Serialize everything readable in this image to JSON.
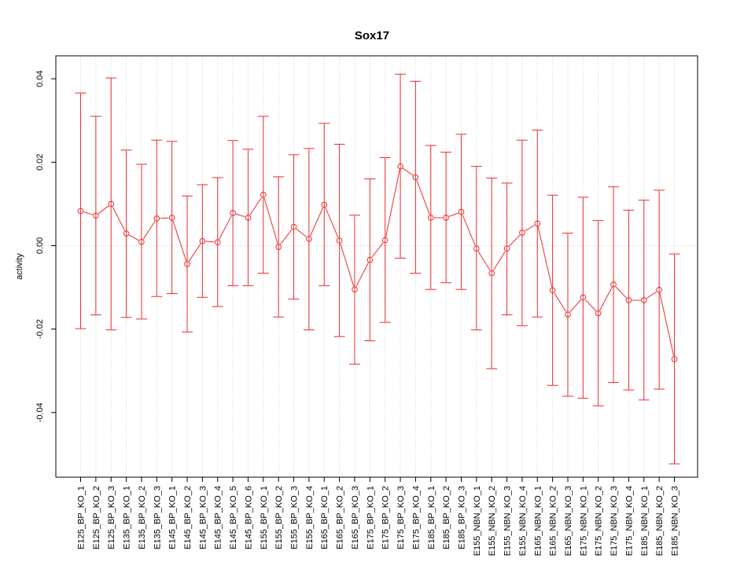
{
  "chart_data": {
    "type": "line",
    "title": "Sox17",
    "xlabel": "",
    "ylabel": "activity",
    "ylim": [
      -0.0555,
      0.0455
    ],
    "yticks": [
      -0.04,
      -0.02,
      0.0,
      0.02,
      0.04
    ],
    "ytick_labels": [
      "-0.04",
      "-0.02",
      "0.00",
      "0.02",
      "0.04"
    ],
    "grid": true,
    "reference_line": 0.0,
    "colors": {
      "series": "#ee2c2c",
      "grid": "#d3d3d3",
      "axis": "#000000"
    },
    "categories": [
      "E125_BP_KO_1",
      "E125_BP_KO_2",
      "E125_BP_KO_3",
      "E135_BP_KO_1",
      "E135_BP_KO_2",
      "E135_BP_KO_3",
      "E145_BP_KO_1",
      "E145_BP_KO_2",
      "E145_BP_KO_3",
      "E145_BP_KO_4",
      "E145_BP_KO_5",
      "E145_BP_KO_6",
      "E155_BP_KO_1",
      "E155_BP_KO_2",
      "E155_BP_KO_3",
      "E155_BP_KO_4",
      "E165_BP_KO_1",
      "E165_BP_KO_2",
      "E165_BP_KO_3",
      "E175_BP_KO_1",
      "E175_BP_KO_2",
      "E175_BP_KO_3",
      "E175_BP_KO_4",
      "E185_BP_KO_1",
      "E185_BP_KO_2",
      "E185_BP_KO_3",
      "E155_NBN_KO_1",
      "E155_NBN_KO_2",
      "E155_NBN_KO_3",
      "E155_NBN_KO_4",
      "E165_NBN_KO_1",
      "E165_NBN_KO_2",
      "E165_NBN_KO_3",
      "E175_NBN_KO_1",
      "E175_NBN_KO_2",
      "E175_NBN_KO_3",
      "E175_NBN_KO_4",
      "E185_NBN_KO_1",
      "E185_NBN_KO_2",
      "E185_NBN_KO_3"
    ],
    "values": [
      0.0083,
      0.0072,
      0.01,
      0.0029,
      0.0009,
      0.0065,
      0.0067,
      -0.0044,
      0.0011,
      0.0008,
      0.0078,
      0.0067,
      0.0122,
      -0.0003,
      0.0045,
      0.0016,
      0.0098,
      0.0012,
      -0.0105,
      -0.0034,
      0.0013,
      0.019,
      0.0164,
      0.0067,
      0.0067,
      0.0081,
      -0.0007,
      -0.0066,
      -0.0007,
      0.0031,
      0.0053,
      -0.0107,
      -0.0165,
      -0.0124,
      -0.0162,
      -0.0093,
      -0.0131,
      -0.0131,
      -0.0106,
      -0.0272
    ],
    "upper": [
      0.0366,
      0.031,
      0.0402,
      0.0229,
      0.0195,
      0.0253,
      0.025,
      0.0119,
      0.0146,
      0.0163,
      0.0252,
      0.0231,
      0.031,
      0.0165,
      0.0218,
      0.0233,
      0.0293,
      0.0243,
      0.0073,
      0.016,
      0.0211,
      0.0411,
      0.0394,
      0.024,
      0.0224,
      0.0267,
      0.019,
      0.0162,
      0.015,
      0.0253,
      0.0277,
      0.0121,
      0.003,
      0.0116,
      0.006,
      0.0141,
      0.0085,
      0.0109,
      0.0133,
      -0.002
    ],
    "lower": [
      -0.0199,
      -0.0166,
      -0.0202,
      -0.0172,
      -0.0176,
      -0.0122,
      -0.0115,
      -0.0207,
      -0.0124,
      -0.0146,
      -0.0096,
      -0.0096,
      -0.0066,
      -0.0171,
      -0.0128,
      -0.0202,
      -0.0096,
      -0.0218,
      -0.0284,
      -0.0228,
      -0.0184,
      -0.003,
      -0.0066,
      -0.0105,
      -0.0089,
      -0.0105,
      -0.0202,
      -0.0295,
      -0.0166,
      -0.0192,
      -0.0171,
      -0.0335,
      -0.0361,
      -0.0366,
      -0.0384,
      -0.0328,
      -0.0346,
      -0.037,
      -0.0344,
      -0.0523
    ]
  }
}
